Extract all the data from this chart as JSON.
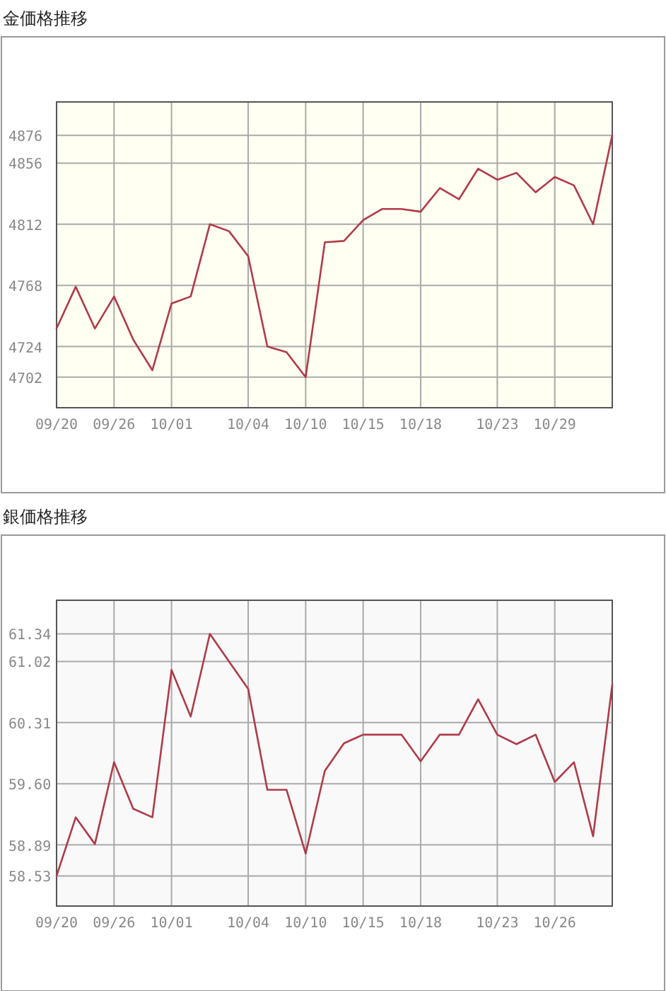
{
  "chart_data": [
    {
      "type": "line",
      "title": "金価格推移",
      "categories": [
        "09/20",
        null,
        null,
        "09/26",
        null,
        null,
        "10/01",
        null,
        null,
        null,
        "10/04",
        null,
        null,
        "10/10",
        null,
        null,
        "10/15",
        null,
        null,
        "10/18",
        null,
        null,
        null,
        "10/23",
        null,
        null,
        "10/29",
        null,
        null,
        null
      ],
      "values": [
        4737,
        4767,
        4737,
        4760,
        4729,
        4707,
        4755,
        4760,
        4812,
        4807,
        4789,
        4724,
        4720,
        4702,
        4799,
        4800,
        4815,
        4823,
        4823,
        4821,
        4838,
        4830,
        4852,
        4844,
        4849,
        4835,
        4846,
        4840,
        4812,
        4876
      ],
      "color": "#b03a48",
      "ylim": [
        4680,
        4900
      ],
      "yticks": [
        4702,
        4724,
        4768,
        4812,
        4856,
        4876
      ],
      "grid": true
    },
    {
      "type": "line",
      "title": "銀価格推移",
      "categories": [
        "09/20",
        null,
        null,
        "09/26",
        null,
        null,
        "10/01",
        null,
        null,
        null,
        "10/04",
        null,
        null,
        "10/10",
        null,
        null,
        "10/15",
        null,
        null,
        "10/18",
        null,
        null,
        null,
        "10/23",
        null,
        null,
        "10/26",
        null,
        null,
        null
      ],
      "values": [
        58.53,
        59.21,
        58.9,
        59.85,
        59.31,
        59.21,
        60.92,
        60.38,
        61.34,
        61.02,
        60.7,
        59.53,
        59.53,
        58.79,
        59.75,
        60.07,
        60.17,
        60.17,
        60.17,
        59.86,
        60.17,
        60.17,
        60.58,
        60.17,
        60.06,
        60.17,
        59.62,
        59.85,
        58.99,
        60.75
      ],
      "color": "#b03a48",
      "ylim": [
        58.18,
        61.73
      ],
      "yticks": [
        58.53,
        58.89,
        {
          "value": 59.6,
          "label": "59.60"
        },
        60.31,
        61.02,
        61.34
      ],
      "grid": true
    }
  ]
}
